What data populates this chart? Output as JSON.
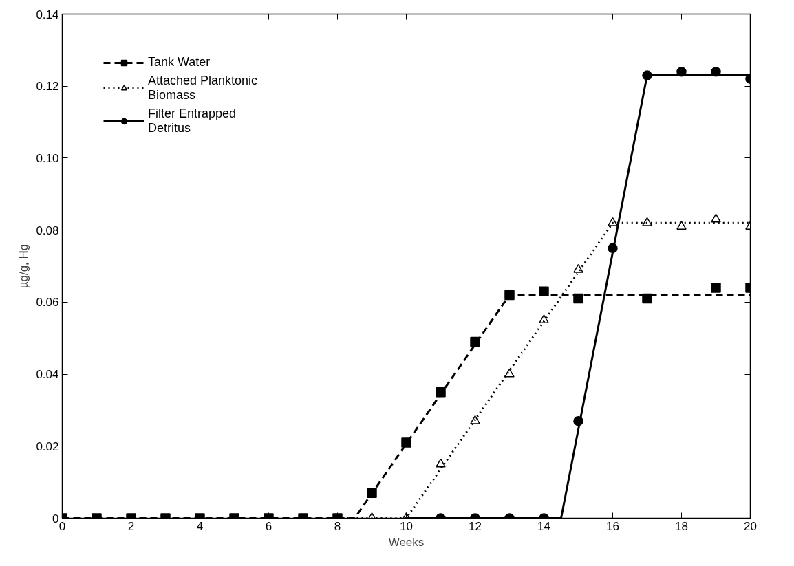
{
  "chart_data": {
    "type": "scatter",
    "xlabel": "Weeks",
    "ylabel": "µg/g, Hg",
    "xlim": [
      0,
      20
    ],
    "ylim": [
      0,
      0.14
    ],
    "xticks": [
      0,
      2,
      4,
      6,
      8,
      10,
      12,
      14,
      16,
      18,
      20
    ],
    "yticks": [
      0,
      0.02,
      0.04,
      0.06,
      0.08,
      {
        "value": 0.1,
        "label": "0.10"
      },
      0.12,
      0.14
    ],
    "grid": false,
    "legend": "top left",
    "series": [
      {
        "name": "Tank Water",
        "marker": "square",
        "color": "#000000",
        "x": [
          0,
          1,
          2,
          3,
          4,
          5,
          6,
          7,
          8,
          9,
          10,
          11,
          12,
          13,
          14,
          15,
          17,
          19,
          20
        ],
        "values": [
          0,
          0,
          0,
          0,
          0,
          0,
          0,
          0,
          0,
          0.007,
          0.021,
          0.035,
          0.049,
          0.062,
          0.063,
          0.061,
          0.061,
          0.064,
          0.064
        ]
      },
      {
        "type": "line",
        "line_style": "dashed",
        "color": "#000000",
        "x": [
          0,
          8.5,
          13,
          20
        ],
        "values": [
          0,
          0,
          0.062,
          0.062
        ]
      },
      {
        "name": "Attached Planktonic\nBiomass",
        "marker": "triangle",
        "color": "#000000",
        "x": [
          9,
          10,
          11,
          12,
          13,
          14,
          15,
          16,
          17,
          18,
          19,
          20
        ],
        "values": [
          0,
          0,
          0.015,
          0.027,
          0.04,
          0.055,
          0.069,
          0.082,
          0.082,
          0.081,
          0.083,
          0.081
        ]
      },
      {
        "type": "line",
        "line_style": "dotted",
        "color": "#000000",
        "x": [
          8,
          10,
          16,
          20
        ],
        "values": [
          0,
          0,
          0.082,
          0.082
        ]
      },
      {
        "name": "Filter Entrapped\nDetritus",
        "marker": "circle",
        "color": "#000000",
        "x": [
          11,
          12,
          13,
          14,
          15,
          16,
          17,
          18,
          19,
          20
        ],
        "values": [
          0,
          0,
          0,
          0,
          0.027,
          0.075,
          0.123,
          0.124,
          0.124,
          0.122
        ]
      },
      {
        "type": "line",
        "line_style": "solid",
        "color": "#000000",
        "x": [
          10,
          14.5,
          17,
          20
        ],
        "values": [
          0,
          0,
          0.123,
          0.123
        ]
      }
    ]
  }
}
